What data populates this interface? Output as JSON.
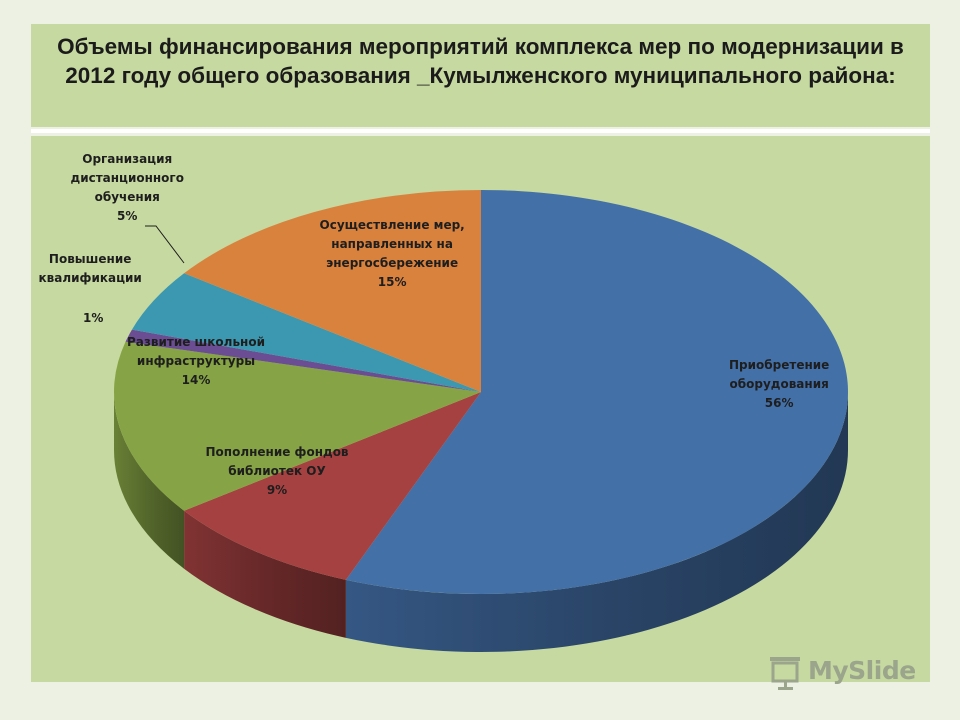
{
  "title": "Объемы финансирования мероприятий комплекса мер по модернизации в 2012 году общего образования _Кумылженского муниципального района:",
  "chart_data": {
    "type": "pie",
    "three_d": true,
    "title": "Объемы финансирования мероприятий комплекса мер по модернизации в 2012 году общего образования _Кумылженского муниципального района:",
    "unit": "%",
    "slices": [
      {
        "label_lines": [
          "Приобретение",
          "оборудования"
        ],
        "value": 56,
        "value_label": "56%",
        "color": "#4470a8"
      },
      {
        "label_lines": [
          "Пополнение фондов",
          "библиотек ОУ"
        ],
        "value": 9,
        "value_label": "9%",
        "color": "#a64142"
      },
      {
        "label_lines": [
          "Развитие школьной",
          "инфраструктуры"
        ],
        "value": 14,
        "value_label": "14%",
        "color": "#86a445"
      },
      {
        "label_lines": [
          "Повышение",
          "квалификации"
        ],
        "value": 1,
        "value_label": "1%",
        "color": "#6b4d93"
      },
      {
        "label_lines": [
          "Организация",
          "дистанционного",
          "обучения"
        ],
        "value": 5,
        "value_label": "5%",
        "color": "#3b98b0"
      },
      {
        "label_lines": [
          "Осуществление мер,",
          "направленных на",
          "энергосбережение"
        ],
        "value": 15,
        "value_label": "15%",
        "color": "#d9823e"
      }
    ]
  },
  "watermark": {
    "text": "MySlide"
  }
}
